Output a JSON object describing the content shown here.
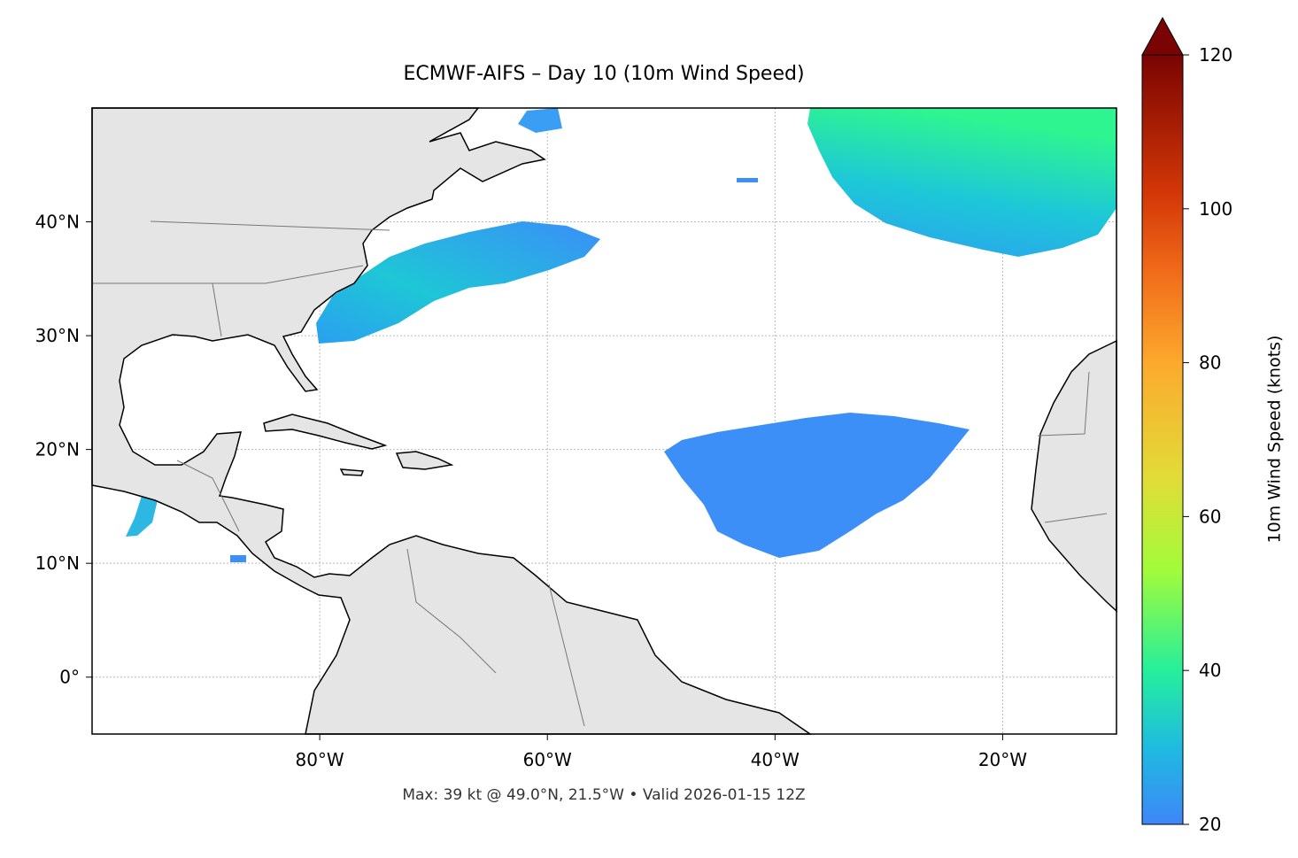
{
  "chart_data": {
    "type": "map",
    "title": "ECMWF-AIFS – Day 10 (10m Wind Speed)",
    "footer": "Max: 39 kt @ 49.0°N, 21.5°W • Valid 2026-01-15 12Z",
    "xlim": [
      -100,
      -10
    ],
    "ylim": [
      -5,
      50
    ],
    "xticks": [
      {
        "value": -80,
        "label": "80°W"
      },
      {
        "value": -60,
        "label": "60°W"
      },
      {
        "value": -40,
        "label": "40°W"
      },
      {
        "value": -20,
        "label": "20°W"
      }
    ],
    "yticks": [
      {
        "value": 0,
        "label": "0°"
      },
      {
        "value": 10,
        "label": "10°N"
      },
      {
        "value": 20,
        "label": "20°N"
      },
      {
        "value": 30,
        "label": "30°N"
      },
      {
        "value": 40,
        "label": "40°N"
      }
    ],
    "grid": true,
    "colorbar": {
      "label": "10m Wind Speed (knots)",
      "lim": [
        20,
        120
      ],
      "ticks": [
        20,
        40,
        60,
        80,
        100,
        120
      ]
    }
  }
}
